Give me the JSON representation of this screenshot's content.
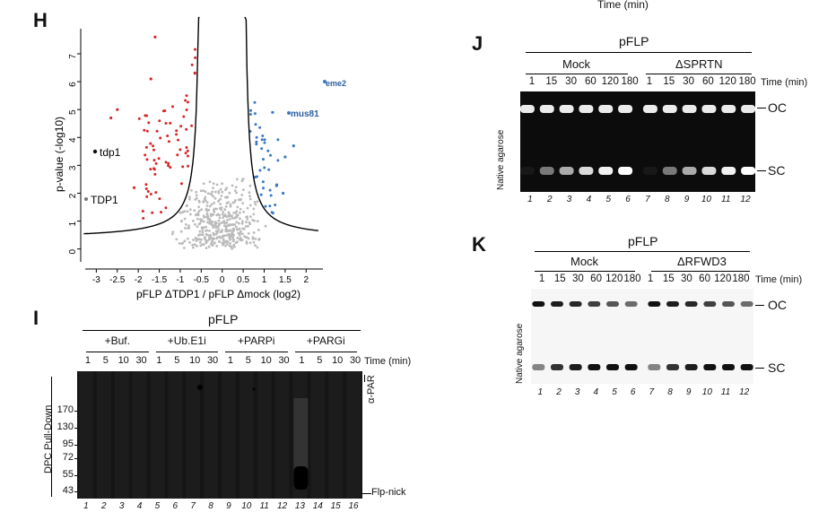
{
  "top_label": "Time (min)",
  "panel_h": {
    "letter": "H",
    "ylabel": "p-value (-log10)",
    "xlabel": "pFLP ΔTDP1 / pFLP Δmock (log2)",
    "highlight_left": "tdp1",
    "highlight_left2": "TDP1",
    "highlight_right": "mus81",
    "highlight_right2": "eme2",
    "colors": {
      "down": "#d62728",
      "up": "#3b78c4",
      "ns": "#bbbbbb",
      "curve": "#000000"
    }
  },
  "chart_data": {
    "type": "scatter",
    "xlabel": "pFLP ΔTDP1 / pFLP Δmock (log2)",
    "ylabel": "p-value (-log10)",
    "xlim": [
      -3.2,
      2.4
    ],
    "ylim": [
      -0.3,
      7.9
    ],
    "x_ticks": [
      "-3",
      "-2.5",
      "-2",
      "-1.5",
      "-1",
      "-0.5",
      "0",
      "0.5",
      "1",
      "1.5",
      "2"
    ],
    "y_ticks": [
      "0",
      "1",
      "2",
      "3",
      "4",
      "5",
      "6",
      "7"
    ],
    "series": [
      {
        "name": "tdp1",
        "color": "#111111",
        "points": [
          [
            -2.9,
            3.5
          ]
        ]
      },
      {
        "name": "TDP1",
        "color": "#111111",
        "points": [
          [
            -3.0,
            1.7
          ]
        ]
      },
      {
        "name": "mus81",
        "color": "#3b78c4",
        "points": [
          [
            1.25,
            4.4
          ]
        ]
      },
      {
        "name": "eme2",
        "color": "#3b78c4",
        "points": [
          [
            2.0,
            5.4
          ]
        ]
      }
    ]
  },
  "panel_j": {
    "letter": "J",
    "construct": "pFLP",
    "group1": "Mock",
    "group2": "ΔSPRTN",
    "times": [
      "1",
      "15",
      "30",
      "60",
      "120",
      "180"
    ],
    "time_label": "Time (min)",
    "side_label": "Native agarose",
    "oc": "OC",
    "sc": "SC",
    "lanes": [
      "1",
      "2",
      "3",
      "4",
      "5",
      "6",
      "7",
      "8",
      "9",
      "10",
      "11",
      "12"
    ]
  },
  "panel_k": {
    "letter": "K",
    "construct": "pFLP",
    "group1": "Mock",
    "group2": "ΔRFWD3",
    "times": [
      "1",
      "15",
      "30",
      "60",
      "120",
      "180"
    ],
    "time_label": "Time (min)",
    "side_label": "Native agarose",
    "oc": "OC",
    "sc": "SC",
    "lanes": [
      "1",
      "2",
      "3",
      "4",
      "5",
      "6",
      "7",
      "8",
      "9",
      "10",
      "11",
      "12"
    ]
  },
  "panel_i": {
    "letter": "I",
    "construct": "pFLP",
    "groups": [
      "+Buf.",
      "+Ub.E1i",
      "+PARPi",
      "+PARGi"
    ],
    "times": [
      "1",
      "5",
      "10",
      "30"
    ],
    "time_label": "Time (min)",
    "side_label": "DPC Pull-Down",
    "mw": [
      "170",
      "130",
      "95",
      "72",
      "55",
      "43"
    ],
    "antibody": "α-PAR",
    "band": "Flp-nick",
    "lanes": [
      "1",
      "2",
      "3",
      "4",
      "5",
      "6",
      "7",
      "8",
      "9",
      "10",
      "11",
      "12",
      "13",
      "14",
      "15",
      "16"
    ]
  }
}
